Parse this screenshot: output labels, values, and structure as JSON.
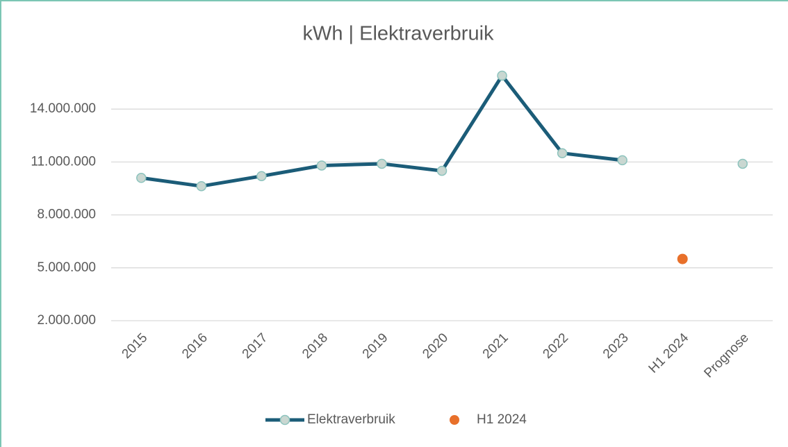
{
  "chart_data": {
    "type": "line",
    "title": "kWh | Elektraverbruik",
    "categories": [
      "2015",
      "2016",
      "2017",
      "2018",
      "2019",
      "2020",
      "2021",
      "2022",
      "2023",
      "H1 2024",
      "Prognose"
    ],
    "series": [
      {
        "name": "Elektraverbruik",
        "color": "#1b5c78",
        "marker_fill": "#c9d7d1",
        "marker_edge": "#8cc3bd",
        "values": [
          10100000,
          9630000,
          10200000,
          10800000,
          10900000,
          10500000,
          15900000,
          11500000,
          11100000,
          null,
          10900000
        ]
      },
      {
        "name": "H1 2024",
        "color": "#e8702a",
        "line": false,
        "values": [
          null,
          null,
          null,
          null,
          null,
          null,
          null,
          null,
          null,
          5500000,
          null
        ]
      }
    ],
    "ylim": [
      2000000,
      17000000
    ],
    "yticks": [
      {
        "value": 2000000,
        "label": "2.000.000"
      },
      {
        "value": 5000000,
        "label": "5.000.000"
      },
      {
        "value": 8000000,
        "label": "8.000.000"
      },
      {
        "value": 11000000,
        "label": "11.000.000"
      },
      {
        "value": 14000000,
        "label": "14.000.000"
      }
    ],
    "grid": true,
    "legend": "bottom"
  }
}
